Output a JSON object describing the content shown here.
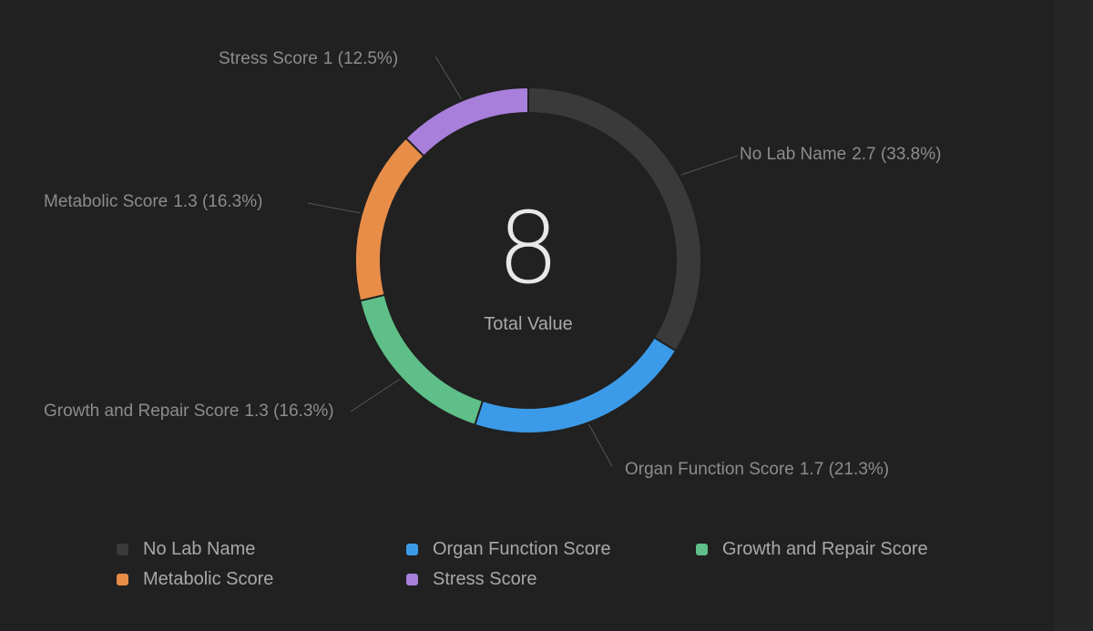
{
  "chart_data": {
    "type": "pie",
    "donut": true,
    "total": "8",
    "total_label": "Total Value",
    "legend_position": "bottom",
    "slices": [
      {
        "name": "No Lab Name",
        "value": 2.7,
        "value_text": "2.7",
        "percent_text": "(33.8%)",
        "color": "#3a3a3a"
      },
      {
        "name": "Organ Function Score",
        "value": 1.7,
        "value_text": "1.7",
        "percent_text": "(21.3%)",
        "color": "#3b9be8"
      },
      {
        "name": "Growth and Repair Score",
        "value": 1.3,
        "value_text": "1.3",
        "percent_text": "(16.3%)",
        "color": "#5fbf88"
      },
      {
        "name": "Metabolic Score",
        "value": 1.3,
        "value_text": "1.3",
        "percent_text": "(16.3%)",
        "color": "#e88d48"
      },
      {
        "name": "Stress Score",
        "value": 1,
        "value_text": "1",
        "percent_text": "(12.5%)",
        "color": "#a97fdc"
      }
    ]
  },
  "legend": [
    {
      "label": "No Lab Name",
      "color": "#3a3a3a"
    },
    {
      "label": "Organ Function Score",
      "color": "#3b9be8"
    },
    {
      "label": "Growth and Repair Score",
      "color": "#5fbf88"
    },
    {
      "label": "Metabolic Score",
      "color": "#e88d48"
    },
    {
      "label": "Stress Score",
      "color": "#a97fdc"
    }
  ]
}
